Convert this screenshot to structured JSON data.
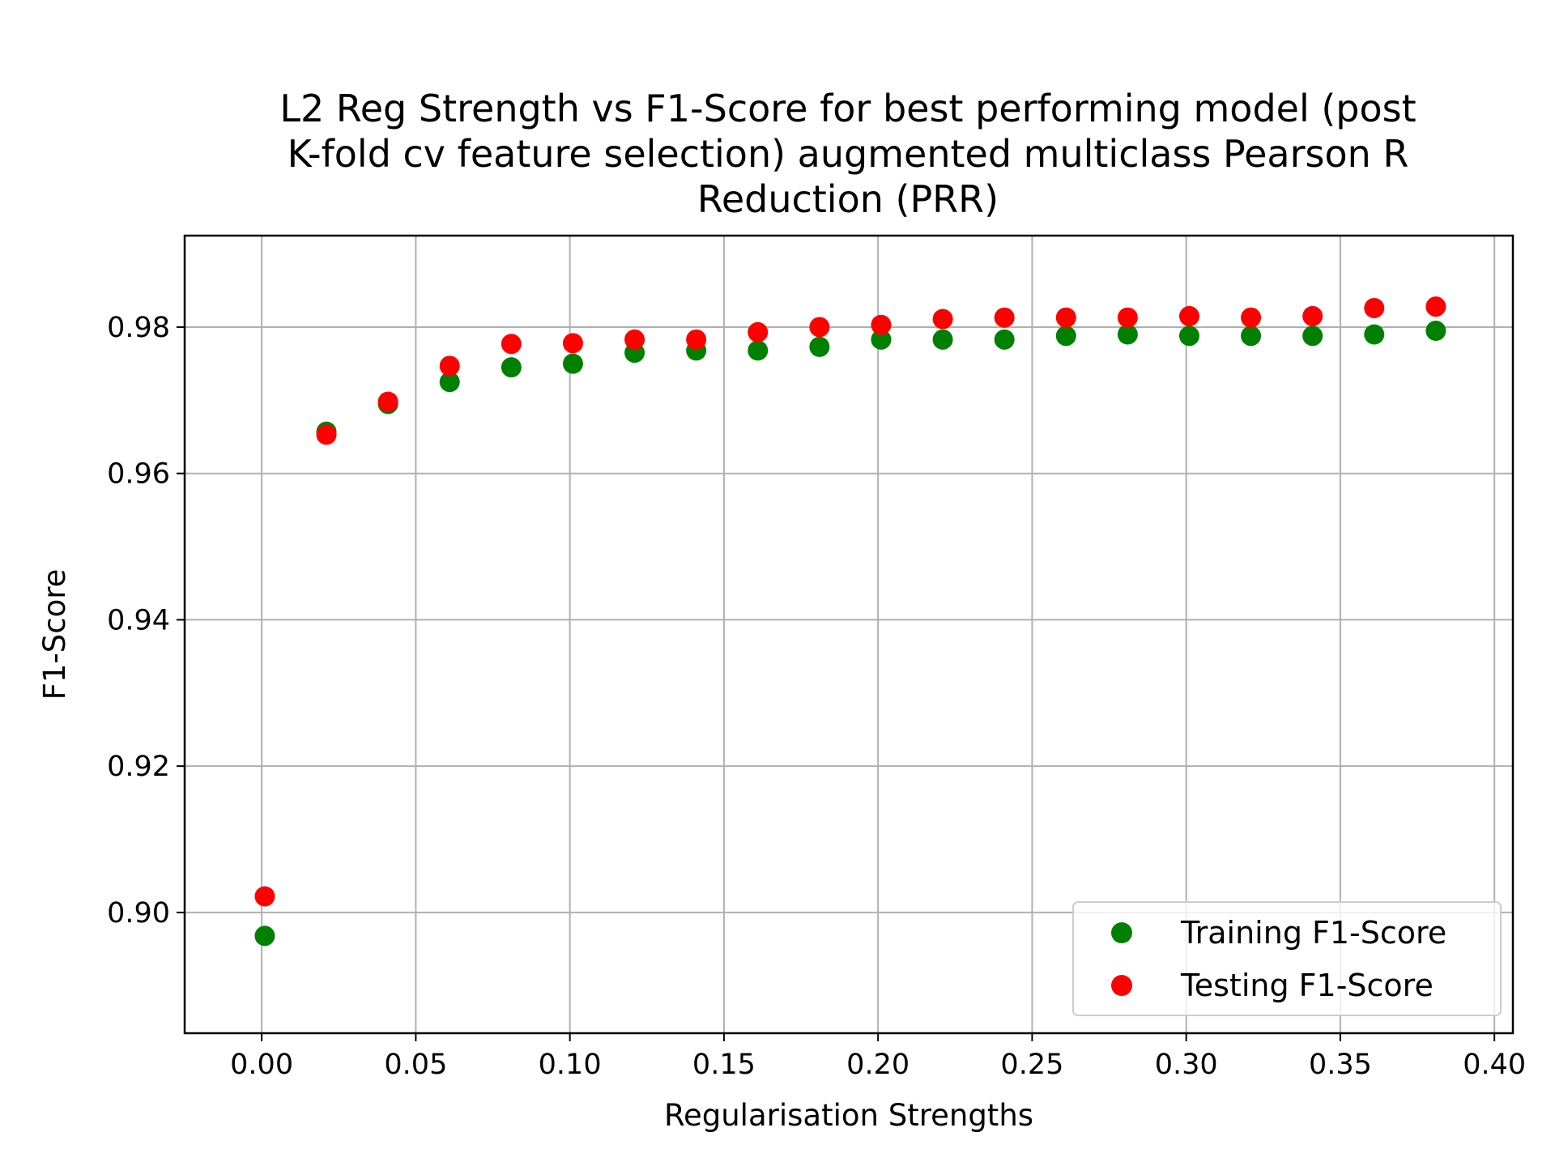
{
  "chart_data": {
    "type": "scatter",
    "title": "L2 Reg Strength vs F1-Score for best performing model (post K-fold cv feature selection) augmented multiclass Pearson R Reduction (PRR)",
    "title_lines": [
      "L2 Reg Strength vs F1-Score for best performing model (post",
      "K-fold cv feature selection) augmented multiclass Pearson R",
      "Reduction (PRR)"
    ],
    "xlabel": "Regularisation Strengths",
    "ylabel": "F1-Score",
    "xlim": [
      -0.025,
      0.406
    ],
    "ylim": [
      0.8835,
      0.9925
    ],
    "xticks": [
      0.0,
      0.05,
      0.1,
      0.15,
      0.2,
      0.25,
      0.3,
      0.35,
      0.4
    ],
    "xtick_labels": [
      "0.00",
      "0.05",
      "0.10",
      "0.15",
      "0.20",
      "0.25",
      "0.30",
      "0.35",
      "0.40"
    ],
    "yticks": [
      0.9,
      0.92,
      0.94,
      0.96,
      0.98
    ],
    "ytick_labels": [
      "0.90",
      "0.92",
      "0.94",
      "0.96",
      "0.98"
    ],
    "grid": true,
    "legend_position": "lower-right",
    "x": [
      0.001,
      0.021,
      0.041,
      0.061,
      0.081,
      0.101,
      0.121,
      0.141,
      0.161,
      0.181,
      0.201,
      0.221,
      0.241,
      0.261,
      0.281,
      0.301,
      0.321,
      0.341,
      0.361,
      0.381
    ],
    "series": [
      {
        "name": "Training F1-Score",
        "color": "#008000",
        "values": [
          0.8968,
          0.9657,
          0.9695,
          0.9725,
          0.9745,
          0.975,
          0.9765,
          0.9768,
          0.9768,
          0.9773,
          0.9783,
          0.9783,
          0.9783,
          0.9788,
          0.979,
          0.9788,
          0.9788,
          0.9788,
          0.979,
          0.9795
        ]
      },
      {
        "name": "Testing F1-Score",
        "color": "#ff0000",
        "values": [
          0.9022,
          0.9653,
          0.9698,
          0.9747,
          0.9777,
          0.9778,
          0.9783,
          0.9783,
          0.9793,
          0.98,
          0.9803,
          0.9811,
          0.9813,
          0.9813,
          0.9813,
          0.9815,
          0.9813,
          0.9815,
          0.9826,
          0.9828
        ]
      }
    ]
  }
}
